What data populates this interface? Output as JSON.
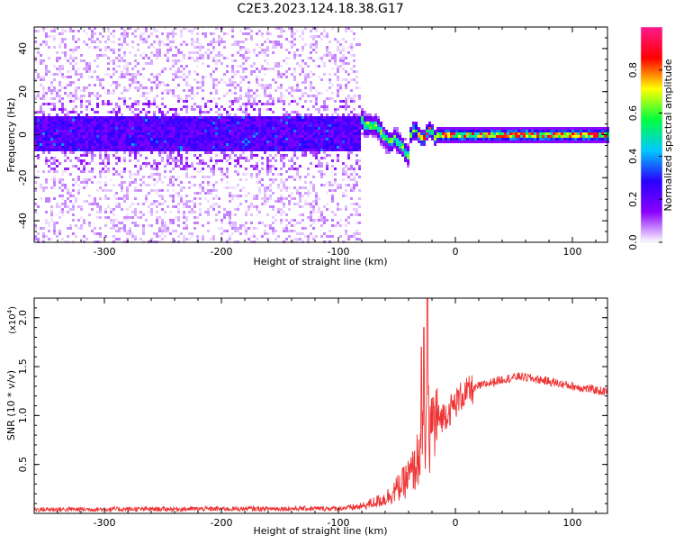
{
  "title": "C2E3.2023.124.18.38.G17",
  "chart_data": [
    {
      "type": "heatmap",
      "xlabel": "Height of straight line (km)",
      "ylabel": "Frequency (Hz)",
      "xlim": [
        -360,
        130
      ],
      "ylim": [
        -50,
        50
      ],
      "xticks": [
        -300,
        -200,
        -100,
        0,
        100
      ],
      "yticks": [
        -40,
        -20,
        0,
        20,
        40
      ],
      "colorbar": {
        "label": "Normalized spectral amplitude",
        "range": [
          0.0,
          1.0
        ],
        "ticks": [
          0.0,
          0.2,
          0.4,
          0.6,
          0.8
        ],
        "colors": [
          "#ffffff",
          "#8a00ff",
          "#2a00ff",
          "#00c8ff",
          "#00ff40",
          "#ffff00",
          "#ff0000",
          "#ff1a8c"
        ]
      },
      "features": {
        "noise_region_x": [
          -360,
          -80
        ],
        "noise_band_halfwidth_hz": 8,
        "transition_x": [
          -88,
          -40
        ],
        "transition_freq_hz": [
          10,
          -8
        ],
        "stable_region_x": [
          -40,
          130
        ],
        "stable_freq_hz": 0
      }
    },
    {
      "type": "line",
      "xlabel": "Height of straight line (km)",
      "ylabel": "SNR (10 * v/v)",
      "yscale_label": "(x10",
      "yscale_exp": "4",
      "xlim": [
        -360,
        130
      ],
      "ylim": [
        0,
        2.2
      ],
      "xticks": [
        -300,
        -200,
        -100,
        0,
        100
      ],
      "yticks": [
        0.5,
        1.0,
        1.5,
        2.0
      ],
      "yticklabels": [
        "0.5",
        "1.0",
        "1.5",
        "2.0"
      ],
      "series_color": "#ee3333",
      "profile": {
        "x": [
          -360,
          -100,
          -80,
          -60,
          -45,
          -35,
          -30,
          -25,
          -22,
          -15,
          -5,
          5,
          20,
          40,
          55,
          75,
          100,
          130
        ],
        "y": [
          0.04,
          0.05,
          0.07,
          0.15,
          0.3,
          0.45,
          0.65,
          0.8,
          0.9,
          0.95,
          1.05,
          1.2,
          1.3,
          1.37,
          1.4,
          1.36,
          1.3,
          1.24
        ]
      },
      "spike": {
        "x": -24,
        "y": 2.2
      }
    }
  ]
}
